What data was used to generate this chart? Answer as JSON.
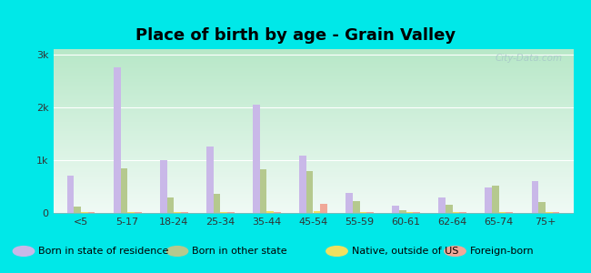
{
  "title": "Place of birth by age - Grain Valley",
  "categories": [
    "<5",
    "5-17",
    "18-24",
    "25-34",
    "35-44",
    "45-54",
    "55-59",
    "60-61",
    "62-64",
    "65-74",
    "75+"
  ],
  "series": {
    "Born in state of residence": [
      700,
      2750,
      1000,
      1250,
      2050,
      1080,
      380,
      130,
      300,
      480,
      600
    ],
    "Born in other state": [
      120,
      850,
      300,
      370,
      820,
      800,
      220,
      60,
      160,
      520,
      200
    ],
    "Native, outside of US": [
      20,
      20,
      20,
      20,
      40,
      40,
      15,
      15,
      15,
      15,
      15
    ],
    "Foreign-born": [
      15,
      20,
      15,
      15,
      25,
      170,
      15,
      15,
      15,
      15,
      15
    ]
  },
  "colors": {
    "Born in state of residence": "#c9b8e8",
    "Born in other state": "#b5c98e",
    "Native, outside of US": "#f0e060",
    "Foreign-born": "#f0a898"
  },
  "ylim": [
    0,
    3100
  ],
  "yticks": [
    0,
    1000,
    2000,
    3000
  ],
  "ytick_labels": [
    "0",
    "1k",
    "2k",
    "3k"
  ],
  "cyan_bg": "#00e8e8",
  "bar_width": 0.15,
  "title_fontsize": 13,
  "legend_fontsize": 8,
  "grad_top": "#b8e8c8",
  "grad_bottom": "#f0faf5"
}
